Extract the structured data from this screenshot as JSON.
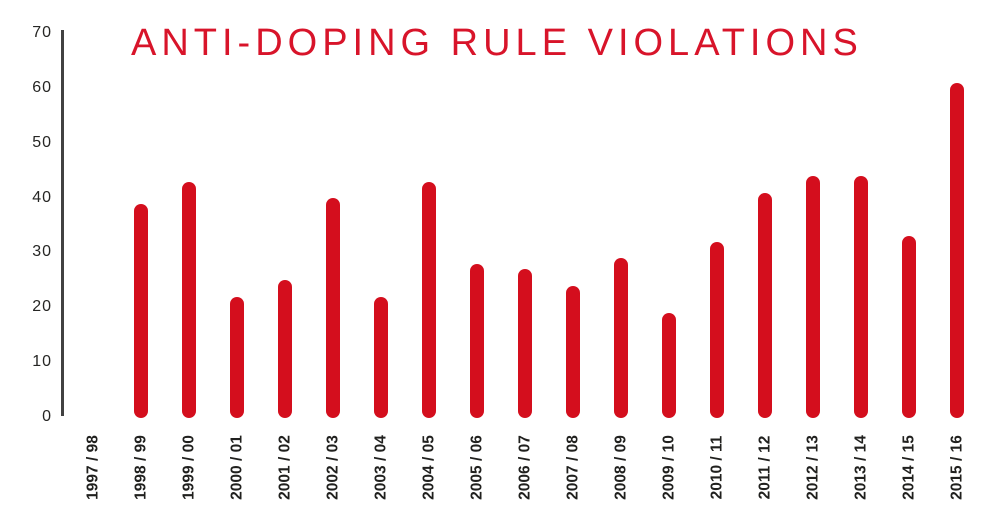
{
  "title": "ANTI-DOPING RULE VIOLATIONS",
  "colors": {
    "bar": "#d40e1d",
    "title_text": "#d8142a",
    "axis_line": "#414141",
    "tick_text": "#262624"
  },
  "chart_data": {
    "type": "bar",
    "title": "ANTI-DOPING RULE VIOLATIONS",
    "categories": [
      "1997 / 98",
      "1998 / 99",
      "1999 / 00",
      "2000 / 01",
      "2001 / 02",
      "2002 / 03",
      "2003 / 04",
      "2004 / 05",
      "2005 / 06",
      "2006 / 07",
      "2007 / 08",
      "2008 / 09",
      "2009 / 10",
      "2010 / 11",
      "2011 / 12",
      "2012 / 13",
      "2013 / 14",
      "2014 / 15",
      "2015 / 16"
    ],
    "values": [
      0,
      38,
      42,
      21,
      24,
      39,
      21,
      42,
      27,
      26,
      23,
      28,
      18,
      31,
      40,
      43,
      43,
      32,
      60
    ],
    "xlabel": "",
    "ylabel": "",
    "ylim": [
      0,
      70
    ],
    "y_ticks": [
      0,
      10,
      20,
      30,
      40,
      50,
      60,
      70
    ],
    "grid": false,
    "legend": null,
    "bar_style": "rounded-caps"
  }
}
